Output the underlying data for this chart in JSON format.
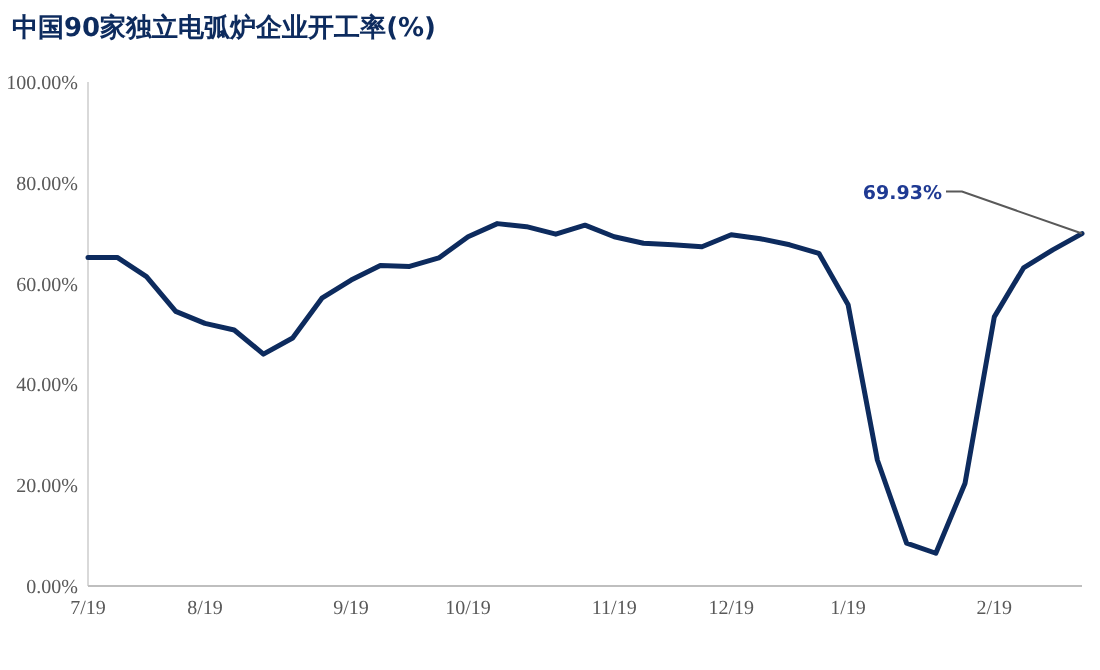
{
  "chart_data": {
    "type": "line",
    "title": "中国90家独立电弧炉企业开工率(%)",
    "categories": [
      "7/19",
      null,
      null,
      null,
      "8/19",
      null,
      null,
      null,
      null,
      "9/19",
      null,
      null,
      null,
      "10/19",
      null,
      null,
      null,
      null,
      "11/19",
      null,
      null,
      null,
      "12/19",
      null,
      null,
      null,
      "1/19",
      null,
      null,
      null,
      null,
      "2/19",
      null,
      null,
      null
    ],
    "series": [
      {
        "color": "#0d2b5e",
        "values": [
          65.2,
          65.2,
          61.4,
          54.5,
          52.1,
          50.8,
          46.0,
          49.2,
          57.1,
          60.7,
          63.6,
          63.4,
          65.1,
          69.3,
          71.9,
          71.3,
          69.8,
          71.6,
          69.3,
          68.0,
          67.7,
          67.3,
          69.7,
          68.9,
          67.7,
          66.0,
          55.8,
          25.0,
          8.5,
          6.5,
          20.4,
          53.4,
          63.1,
          66.7,
          69.93
        ],
        "value_labels": [
          null,
          null,
          null,
          null,
          null,
          null,
          null,
          null,
          null,
          null,
          null,
          null,
          null,
          null,
          null,
          null,
          null,
          null,
          null,
          null,
          null,
          null,
          null,
          null,
          null,
          null,
          null,
          null,
          null,
          null,
          null,
          null,
          null,
          null,
          "69.93%"
        ]
      }
    ],
    "ylim": [
      0,
      100
    ],
    "yticks": [
      {
        "value": 0,
        "label": "0.00%"
      },
      {
        "value": 20,
        "label": "20.00%"
      },
      {
        "value": 40,
        "label": "40.00%"
      },
      {
        "value": 60,
        "label": "60.00%"
      },
      {
        "value": 80,
        "label": "80.00%"
      },
      {
        "value": 100,
        "label": "100.00%"
      }
    ]
  }
}
